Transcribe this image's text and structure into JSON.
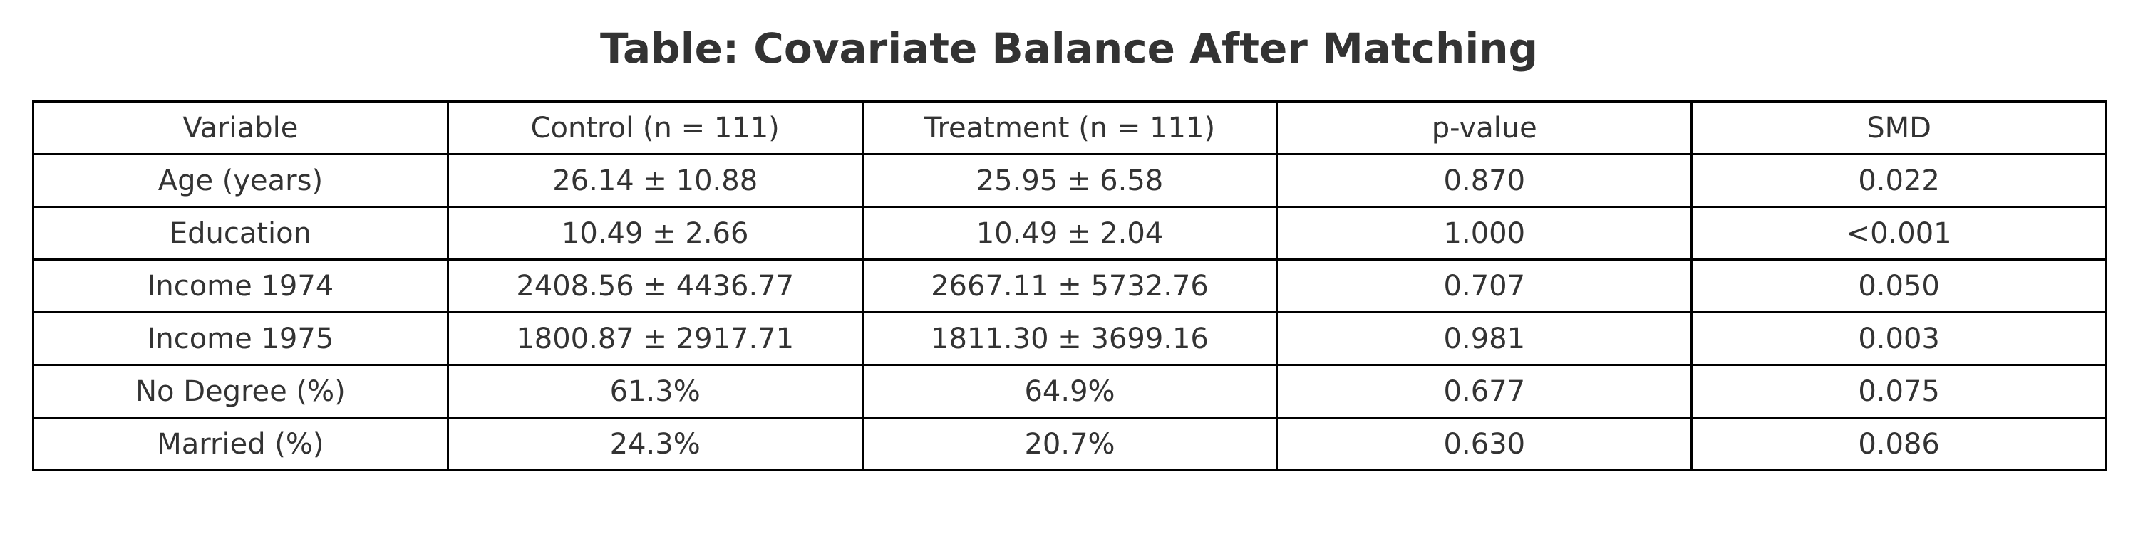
{
  "title": "Table: Covariate Balance After Matching",
  "chart_data": {
    "type": "table",
    "title": "Table: Covariate Balance After Matching",
    "columns": [
      "Variable",
      "Control (n = 111)",
      "Treatment (n = 111)",
      "p-value",
      "SMD"
    ],
    "rows": [
      [
        "Age (years)",
        "26.14 ± 10.88",
        "25.95 ± 6.58",
        "0.870",
        "0.022"
      ],
      [
        "Education",
        "10.49 ± 2.66",
        "10.49 ± 2.04",
        "1.000",
        "<0.001"
      ],
      [
        "Income 1974",
        "2408.56 ± 4436.77",
        "2667.11 ± 5732.76",
        "0.707",
        "0.050"
      ],
      [
        "Income 1975",
        "1800.87 ± 2917.71",
        "1811.30 ± 3699.16",
        "0.981",
        "0.003"
      ],
      [
        "No Degree (%)",
        "61.3%",
        "64.9%",
        "0.677",
        "0.075"
      ],
      [
        "Married (%)",
        "24.3%",
        "20.7%",
        "0.630",
        "0.086"
      ]
    ]
  }
}
